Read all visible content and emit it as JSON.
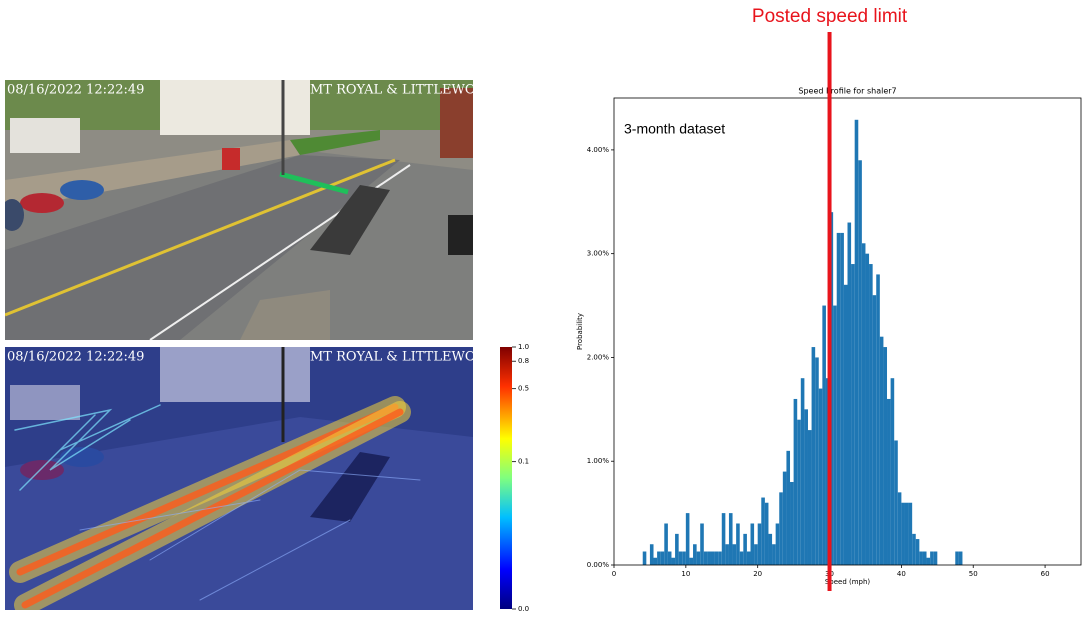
{
  "images": [
    {
      "timestamp": "08/16/2022 12:22:49",
      "location": "MT ROYAL & LITTLEWOOD"
    },
    {
      "timestamp": "08/16/2022 12:22:49",
      "location": "MT ROYAL & LITTLEWOOD"
    }
  ],
  "chart_data": [
    {
      "type": "colorbar",
      "scale": "power",
      "exponent": 0.25,
      "ylim": [
        0,
        1
      ],
      "yticks": [
        {
          "value": 0,
          "label": "0.0"
        },
        0.1,
        0.5,
        0.8,
        {
          "value": 1,
          "label": "1.0"
        }
      ]
    },
    {
      "type": "histogram",
      "title": "Speed Profile for shaler7",
      "x_label": "Speed (mph)",
      "y_label": "Probability",
      "annotation": "3-month dataset",
      "reference_line": {
        "value": 30,
        "label": "Posted speed limit",
        "color": "#e8141c"
      },
      "color": "#1f77b4",
      "xlim": [
        0,
        65
      ],
      "xticks": [
        0,
        10,
        20,
        30,
        40,
        50,
        60
      ],
      "ylim": [
        0,
        4.5
      ],
      "yticks": [
        {
          "value": 0,
          "label": "0.00%"
        },
        {
          "value": 1,
          "label": "1.00%"
        },
        {
          "value": 2,
          "label": "2.00%"
        },
        {
          "value": 3,
          "label": "3.00%"
        },
        {
          "value": 4,
          "label": "4.00%"
        }
      ],
      "bins": [
        4,
        4.5,
        5,
        5.5,
        6,
        6.5,
        7,
        7.5,
        8,
        8.5,
        9,
        9.5,
        10,
        10.5,
        11,
        11.5,
        12,
        12.5,
        13,
        13.5,
        14,
        14.5,
        15,
        15.5,
        16,
        16.5,
        17,
        17.5,
        18,
        18.5,
        19,
        19.5,
        20,
        20.5,
        21,
        21.5,
        22,
        22.5,
        23,
        23.5,
        24,
        24.5,
        25,
        25.5,
        26,
        26.5,
        27,
        27.5,
        28,
        28.5,
        29,
        29.5,
        30,
        30.5,
        31,
        31.5,
        32,
        32.5,
        33,
        33.5,
        34,
        34.5,
        35,
        35.5,
        36,
        36.5,
        37,
        37.5,
        38,
        38.5,
        39,
        39.5,
        40,
        40.5,
        41,
        41.5,
        42,
        42.5,
        43,
        43.5,
        44,
        44.5,
        45,
        45.5,
        46,
        46.5,
        47,
        47.5,
        48,
        48.5
      ],
      "values": [
        0.13,
        0,
        0.2,
        0.07,
        0.13,
        0.13,
        0.4,
        0.13,
        0.07,
        0.3,
        0.13,
        0.13,
        0.5,
        0.07,
        0.2,
        0.13,
        0.4,
        0.13,
        0.13,
        0.13,
        0.13,
        0.13,
        0.5,
        0.2,
        0.5,
        0.2,
        0.4,
        0.13,
        0.3,
        0.13,
        0.4,
        0.2,
        0.4,
        0.65,
        0.6,
        0.3,
        0.2,
        0.4,
        0.7,
        0.9,
        1.1,
        0.8,
        1.6,
        1.4,
        1.8,
        1.5,
        1.3,
        2.1,
        2.0,
        1.7,
        2.5,
        1.8,
        3.4,
        2.5,
        3.2,
        3.2,
        2.7,
        3.3,
        2.9,
        4.29,
        3.9,
        3.1,
        3.0,
        2.9,
        2.6,
        2.8,
        2.2,
        2.1,
        1.6,
        1.8,
        1.2,
        0.7,
        0.6,
        0.6,
        0.6,
        0.3,
        0.25,
        0.13,
        0.13,
        0.07,
        0.13,
        0.13,
        0,
        0,
        0,
        0,
        0,
        0.13,
        0.13
      ]
    }
  ]
}
